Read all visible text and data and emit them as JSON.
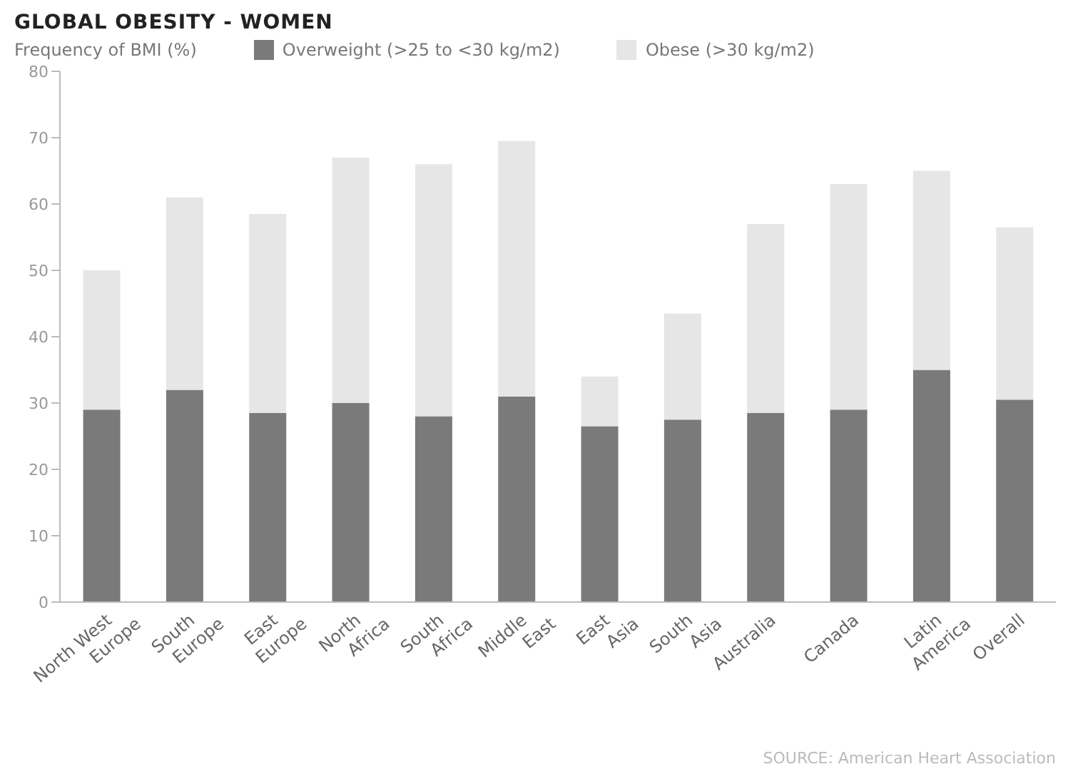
{
  "chart_data": {
    "type": "bar",
    "title": "GLOBAL OBESITY - WOMEN",
    "ylabel": "Frequency of BMI (%)",
    "stacked": true,
    "legend": "top",
    "grid": false,
    "categories": [
      "North West Europe",
      "South Europe",
      "East Europe",
      "North Africa",
      "South Africa",
      "Middle East",
      "East Asia",
      "South Asia",
      "Australia",
      "Canada",
      "Latin America",
      "Overall"
    ],
    "series": [
      {
        "name": "Overweight (>25 to <30 kg/m2)",
        "color": "#7a7a7a",
        "values": [
          29,
          32,
          28.5,
          30,
          28,
          31,
          26.5,
          27.5,
          28.5,
          29,
          35,
          30.5
        ]
      },
      {
        "name": "Obese (>30 kg/m2)",
        "color": "#e6e6e6",
        "values": [
          21,
          29,
          30,
          37,
          38,
          38.5,
          7.5,
          16,
          28.5,
          34,
          30,
          26
        ]
      }
    ],
    "ylim": [
      0,
      80
    ],
    "yticks": [
      0,
      10,
      20,
      30,
      40,
      50,
      60,
      70,
      80
    ],
    "annotations": [
      "SOURCE: American Heart Association"
    ]
  }
}
